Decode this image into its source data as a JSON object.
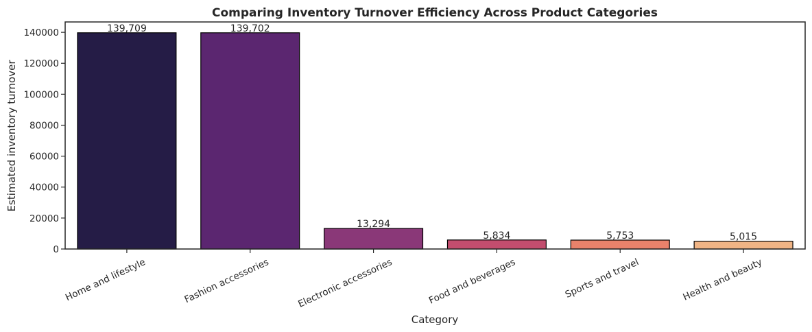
{
  "chart_data": {
    "type": "bar",
    "title": "Comparing Inventory Turnover Efficiency Across Product Categories",
    "xlabel": "Category",
    "ylabel": "Estimated inventory turnover",
    "categories": [
      "Home and lifestyle",
      "Fashion accessories",
      "Electronic accessories",
      "Food and beverages",
      "Sports and travel",
      "Health and beauty"
    ],
    "values": [
      139709,
      139702,
      13294,
      5834,
      5753,
      5015
    ],
    "data_labels": [
      "139,709",
      "139,702",
      "13,294",
      "5,834",
      "5,753",
      "5,015"
    ],
    "yticks": [
      0,
      20000,
      40000,
      60000,
      80000,
      100000,
      120000,
      140000
    ],
    "ytick_labels": [
      "0",
      "20000",
      "40000",
      "60000",
      "80000",
      "100000",
      "120000",
      "140000"
    ],
    "ylim": [
      0,
      146700
    ],
    "grid": false,
    "colors": [
      "#251c46",
      "#5b2670",
      "#8a3878",
      "#c24d6e",
      "#e9826b",
      "#f0b485"
    ],
    "edge_color": "#000000"
  }
}
